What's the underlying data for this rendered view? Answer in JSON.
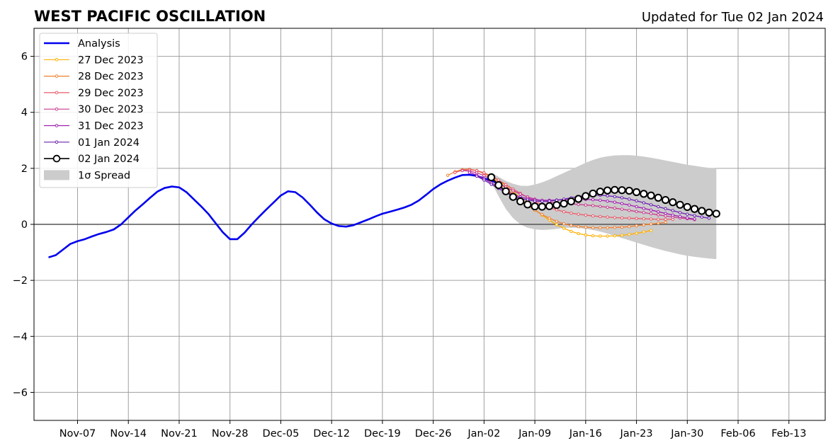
{
  "header": {
    "title": "WEST PACIFIC OSCILLATION",
    "updated": "Updated for Tue 02 Jan 2024"
  },
  "chart_data": {
    "type": "line",
    "title": "WEST PACIFIC OSCILLATION",
    "xlabel": "",
    "ylabel": "",
    "x_origin": "2023-11-01",
    "xlim": [
      "2023-11-01",
      "2024-02-18"
    ],
    "ylim": [
      -7,
      7
    ],
    "grid": true,
    "legend_position": "top-left",
    "x_tick_labels": [
      "Nov-07",
      "Nov-14",
      "Nov-21",
      "Nov-28",
      "Dec-05",
      "Dec-12",
      "Dec-19",
      "Dec-26",
      "Jan-02",
      "Jan-09",
      "Jan-16",
      "Jan-23",
      "Jan-30",
      "Feb-06",
      "Feb-13"
    ],
    "x_tick_dates": [
      "2023-11-07",
      "2023-11-14",
      "2023-11-21",
      "2023-11-28",
      "2023-12-05",
      "2023-12-12",
      "2023-12-19",
      "2023-12-26",
      "2024-01-02",
      "2024-01-09",
      "2024-01-16",
      "2024-01-23",
      "2024-01-30",
      "2024-02-06",
      "2024-02-13"
    ],
    "y_ticks": [
      -6,
      -4,
      -2,
      0,
      2,
      4,
      6
    ],
    "y_tick_labels": [
      "−6",
      "−4",
      "−2",
      "0",
      "2",
      "4",
      "6"
    ],
    "series": [
      {
        "name": "Analysis",
        "color": "#0000ee",
        "start": "2023-11-03",
        "values": [
          -1.18,
          -1.1,
          -0.9,
          -0.7,
          -0.6,
          -0.53,
          -0.43,
          -0.34,
          -0.27,
          -0.18,
          0.0,
          0.25,
          0.5,
          0.72,
          0.95,
          1.17,
          1.3,
          1.35,
          1.32,
          1.15,
          0.9,
          0.65,
          0.38,
          0.05,
          -0.28,
          -0.53,
          -0.53,
          -0.3,
          0.0,
          0.27,
          0.53,
          0.78,
          1.03,
          1.18,
          1.15,
          0.96,
          0.7,
          0.42,
          0.18,
          0.03,
          -0.06,
          -0.08,
          -0.03,
          0.07,
          0.17,
          0.28,
          0.38,
          0.45,
          0.52,
          0.6,
          0.7,
          0.85,
          1.05,
          1.26,
          1.43,
          1.56,
          1.67,
          1.76,
          1.77,
          1.73,
          1.65,
          1.56,
          1.46
        ]
      },
      {
        "name": "27 Dec 2023",
        "color": "#ffb000",
        "start": "2023-12-30",
        "values": [
          1.95,
          1.96,
          1.92,
          1.84,
          1.72,
          1.57,
          1.38,
          1.17,
          0.95,
          0.74,
          0.53,
          0.33,
          0.15,
          -0.01,
          -0.14,
          -0.25,
          -0.33,
          -0.38,
          -0.41,
          -0.42,
          -0.42,
          -0.41,
          -0.39,
          -0.36,
          -0.32,
          -0.27,
          -0.22
        ]
      },
      {
        "name": "28 Dec 2023",
        "color": "#f08030",
        "start": "2023-12-28",
        "values": [
          1.75,
          1.88,
          1.96,
          1.97,
          1.92,
          1.81,
          1.67,
          1.49,
          1.29,
          1.08,
          0.88,
          0.68,
          0.5,
          0.35,
          0.22,
          0.11,
          0.02,
          -0.04,
          -0.08,
          -0.1,
          -0.12,
          -0.12,
          -0.12,
          -0.11,
          -0.1,
          -0.08,
          -0.05,
          -0.02,
          0.01,
          0.04,
          0.07
        ]
      },
      {
        "name": "29 Dec 2023",
        "color": "#e85a6a",
        "start": "2023-12-29",
        "values": [
          1.85,
          1.93,
          1.95,
          1.92,
          1.84,
          1.73,
          1.58,
          1.42,
          1.26,
          1.11,
          0.96,
          0.82,
          0.7,
          0.6,
          0.52,
          0.45,
          0.4,
          0.36,
          0.33,
          0.3,
          0.28,
          0.26,
          0.24,
          0.23,
          0.22,
          0.21,
          0.2,
          0.19,
          0.18,
          0.18,
          0.18
        ]
      },
      {
        "name": "30 Dec 2023",
        "color": "#c83c8c",
        "start": "2023-12-30",
        "values": [
          1.92,
          1.9,
          1.84,
          1.74,
          1.61,
          1.47,
          1.33,
          1.2,
          1.08,
          0.98,
          0.9,
          0.84,
          0.8,
          0.77,
          0.75,
          0.73,
          0.71,
          0.69,
          0.67,
          0.64,
          0.61,
          0.58,
          0.54,
          0.5,
          0.46,
          0.42,
          0.38,
          0.34,
          0.3,
          0.26,
          0.23,
          0.2,
          0.17
        ]
      },
      {
        "name": "31 Dec 2023",
        "color": "#a020b0",
        "start": "2023-12-31",
        "values": [
          1.85,
          1.76,
          1.63,
          1.48,
          1.33,
          1.19,
          1.07,
          0.98,
          0.92,
          0.88,
          0.86,
          0.86,
          0.87,
          0.88,
          0.89,
          0.89,
          0.89,
          0.88,
          0.86,
          0.83,
          0.79,
          0.74,
          0.69,
          0.63,
          0.57,
          0.51,
          0.45,
          0.39,
          0.33,
          0.28,
          0.23,
          0.19
        ]
      },
      {
        "name": "01 Jan 2024",
        "color": "#6a20b0",
        "start": "2024-01-01",
        "values": [
          1.72,
          1.58,
          1.43,
          1.28,
          1.14,
          1.02,
          0.93,
          0.87,
          0.83,
          0.82,
          0.83,
          0.86,
          0.9,
          0.95,
          0.99,
          1.02,
          1.04,
          1.04,
          1.02,
          0.99,
          0.95,
          0.9,
          0.84,
          0.77,
          0.7,
          0.63,
          0.56,
          0.49,
          0.42,
          0.36,
          0.31,
          0.26,
          0.22
        ]
      },
      {
        "name": "02 Jan 2024",
        "color": "#000000",
        "start": "2024-01-03",
        "values": [
          1.68,
          1.4,
          1.18,
          0.98,
          0.82,
          0.71,
          0.64,
          0.63,
          0.65,
          0.69,
          0.74,
          0.82,
          0.91,
          1.01,
          1.1,
          1.17,
          1.21,
          1.23,
          1.22,
          1.2,
          1.15,
          1.09,
          1.03,
          0.95,
          0.87,
          0.79,
          0.7,
          0.62,
          0.55,
          0.48,
          0.42,
          0.38
        ]
      }
    ],
    "spread": {
      "name": "1σ Spread",
      "color": "#cccccc",
      "start": "2024-01-03",
      "upper": [
        1.85,
        1.7,
        1.55,
        1.45,
        1.38,
        1.37,
        1.42,
        1.5,
        1.6,
        1.72,
        1.84,
        1.96,
        2.08,
        2.2,
        2.3,
        2.38,
        2.43,
        2.46,
        2.47,
        2.47,
        2.45,
        2.42,
        2.38,
        2.33,
        2.28,
        2.23,
        2.18,
        2.13,
        2.09,
        2.05,
        2.02,
        2.0
      ],
      "lower": [
        1.5,
        1.0,
        0.55,
        0.22,
        0.0,
        -0.12,
        -0.18,
        -0.2,
        -0.19,
        -0.16,
        -0.13,
        -0.12,
        -0.13,
        -0.16,
        -0.2,
        -0.26,
        -0.33,
        -0.41,
        -0.49,
        -0.57,
        -0.65,
        -0.73,
        -0.81,
        -0.88,
        -0.95,
        -1.01,
        -1.07,
        -1.12,
        -1.16,
        -1.19,
        -1.22,
        -1.24
      ]
    }
  }
}
